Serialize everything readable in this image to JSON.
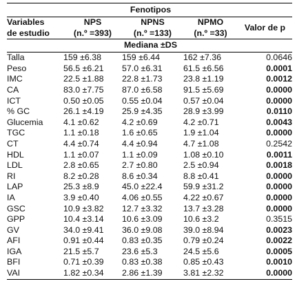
{
  "table": {
    "group_title": "Fenotipos",
    "variables_header": [
      "Variables",
      "de estudio"
    ],
    "groups": [
      {
        "name": "NPS",
        "n": "(n.º =393)"
      },
      {
        "name": "NPNS",
        "n": "(n.º =133)"
      },
      {
        "name": "NPMO",
        "n": "(n.º =33)"
      }
    ],
    "pvalue_header": "Valor de p",
    "stat_label": "Mediana ±DS",
    "rows": [
      {
        "var": "Talla",
        "v": [
          "159 ±6.38",
          "159 ±6.44",
          "162 ±7.36"
        ],
        "p": "0.0646",
        "sig": false
      },
      {
        "var": "Peso",
        "v": [
          "56.5 ±6.21",
          "57.0 ±6.31",
          "61.5 ±6.56"
        ],
        "p": "0.0001",
        "sig": true
      },
      {
        "var": "IMC",
        "v": [
          "22.5 ±1.88",
          "22.8 ±1.73",
          "23.8 ±1.19"
        ],
        "p": "0.0012",
        "sig": true
      },
      {
        "var": "CA",
        "v": [
          "83.0 ±7.75",
          "87.0 ±6.58",
          "91.5 ±5.69"
        ],
        "p": "0.0000",
        "sig": true
      },
      {
        "var": "ICT",
        "v": [
          "0.50 ±0.05",
          "0.55 ±0.04",
          "0.57 ±0.04"
        ],
        "p": "0.0000",
        "sig": true
      },
      {
        "var": "% GC",
        "v": [
          "26.1 ±4.19",
          "25.9 ±4.35",
          "28.9 ±3.99"
        ],
        "p": "0.0110",
        "sig": true
      },
      {
        "var": "Glucemia",
        "v": [
          "4.1 ±0.62",
          "4.2 ±0.69",
          "4.2 ±0.71"
        ],
        "p": "0.0043",
        "sig": true
      },
      {
        "var": "TGC",
        "v": [
          "1.1 ±0.18",
          "1.6 ±0.65",
          "1.9 ±1.04"
        ],
        "p": "0.0000",
        "sig": true
      },
      {
        "var": "CT",
        "v": [
          "4.4 ±0.74",
          "4.4 ±0.94",
          "4.7 ±1.08"
        ],
        "p": "0.2542",
        "sig": false
      },
      {
        "var": "HDL",
        "v": [
          "1.1 ±0.07",
          "1.1 ±0.09",
          "1.08 ±0.10"
        ],
        "p": "0.0011",
        "sig": true
      },
      {
        "var": "LDL",
        "v": [
          "2.8 ±0.65",
          "2.7 ±0.80",
          "2.5 ±0.94"
        ],
        "p": "0.0018",
        "sig": true
      },
      {
        "var": "RI",
        "v": [
          "8.2 ±0.28",
          "8.6 ±0.34",
          "8.8 ±0.41"
        ],
        "p": "0.0000",
        "sig": true
      },
      {
        "var": "LAP",
        "v": [
          "25.3 ±8.9",
          "45.0 ±22.4",
          "59.9 ±31.2"
        ],
        "p": "0.0000",
        "sig": true
      },
      {
        "var": "IA",
        "v": [
          "3.9 ±0.40",
          "4.06 ±0.55",
          "4.22 ±0.67"
        ],
        "p": "0.0000",
        "sig": true
      },
      {
        "var": "GSC",
        "v": [
          "10.9 ±3.82",
          "12.7 ±3.32",
          "13.7 ±3.28"
        ],
        "p": "0.0000",
        "sig": true
      },
      {
        "var": "GPP",
        "v": [
          "10.4 ±3.14",
          "10.6 ±3.09",
          "10.6 ±3.2"
        ],
        "p": "0.3515",
        "sig": false
      },
      {
        "var": "GV",
        "v": [
          "34.0 ±9.41",
          "36.0 ±9.08",
          "39.0 ±8.94"
        ],
        "p": "0.0023",
        "sig": true
      },
      {
        "var": "AFI",
        "v": [
          "0.91 ±0.44",
          "0.83 ±0.35",
          "0.79 ±0.24"
        ],
        "p": "0.0022",
        "sig": true
      },
      {
        "var": "IGA",
        "v": [
          "21.5 ±5.7",
          "23.6 ±5.3",
          "24.5 ±5.6"
        ],
        "p": "0.0005",
        "sig": true
      },
      {
        "var": "BFI",
        "v": [
          "0.71 ±0.39",
          "0.83 ±0.38",
          "0.85 ±0.43"
        ],
        "p": "0.0010",
        "sig": true
      },
      {
        "var": "VAI",
        "v": [
          "1.82 ±0.34",
          "2.86 ±1.39",
          "3.81 ±2.32"
        ],
        "p": "0.0000",
        "sig": true
      }
    ]
  }
}
